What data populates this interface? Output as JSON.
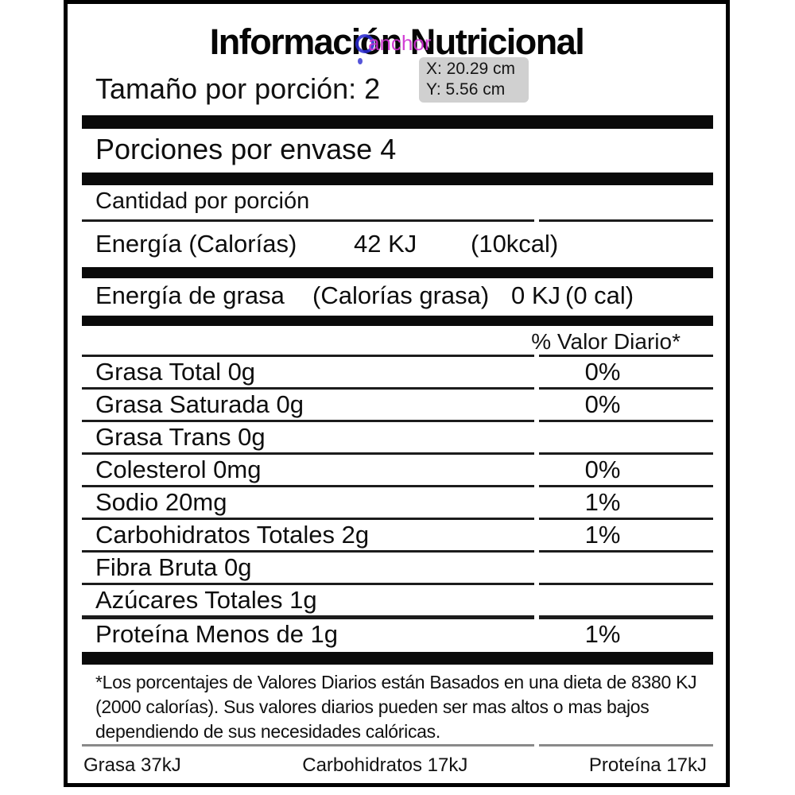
{
  "overlay": {
    "anchor_label": "anchor",
    "tooltip": {
      "x_readout": "X: 20.29 cm",
      "y_readout": "Y: 5.56 cm"
    },
    "colors": {
      "anchor_text": "#cf30d2",
      "marker_ring": "#2b2bd0",
      "tooltip_bg": "#cecece"
    }
  },
  "label": {
    "title": "Información Nutricional",
    "serving_size_visible": "Tamaño por porción: 2",
    "servings_per_container": "Porciones por envase 4",
    "amount_per_serving": "Cantidad por porción",
    "energy_row": {
      "name": "Energía (Calorías)",
      "kj": "42 KJ",
      "kcal": "(10kcal)"
    },
    "fat_energy_row": {
      "name": "Energía de grasa",
      "alt": "(Calorías grasa)",
      "kj": "0 KJ",
      "cal": "(0 cal)"
    },
    "daily_value_header": "% Valor Diario*",
    "nutrients": [
      {
        "name": "Grasa Total 0g",
        "dv": "0%"
      },
      {
        "name": "Grasa Saturada 0g",
        "dv": "0%"
      },
      {
        "name": "Grasa Trans 0g",
        "dv": ""
      },
      {
        "name": "Colesterol 0mg",
        "dv": "0%"
      },
      {
        "name": "Sodio 20mg",
        "dv": "1%"
      },
      {
        "name": "Carbohidratos Totales 2g",
        "dv": "1%"
      },
      {
        "name": "Fibra Bruta 0g",
        "dv": ""
      },
      {
        "name": "Azúcares Totales 1g",
        "dv": ""
      },
      {
        "name": "Proteína Menos de 1g",
        "dv": "1%"
      }
    ],
    "footnote": "*Los porcentajes de Valores Diarios están Basados en una dieta de 8380 KJ (2000 calorías). Sus valores diarios pueden ser mas altos o mas bajos dependiendo de sus necesidades calóricas.",
    "energy_sources": {
      "fat": "Grasa 37kJ",
      "carbs": "Carbohidratos 17kJ",
      "protein": "Proteína 17kJ"
    }
  }
}
